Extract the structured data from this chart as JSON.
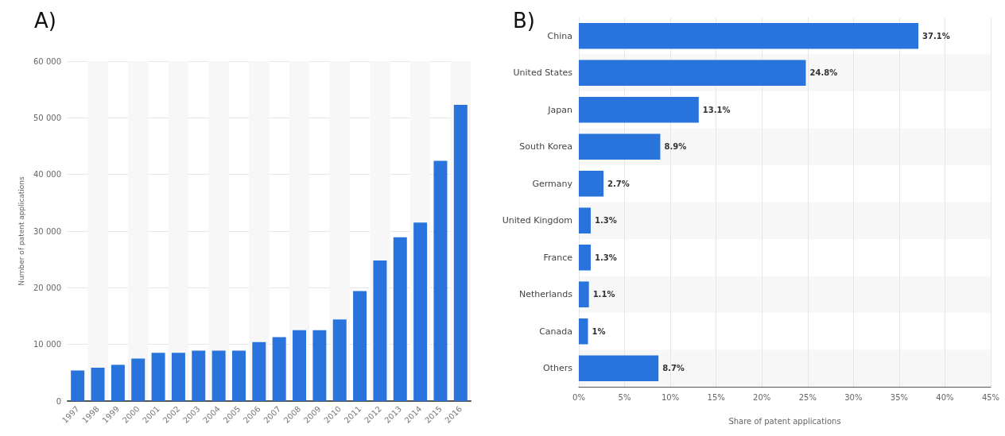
{
  "chart_data": [
    {
      "type": "bar",
      "title": "A)",
      "ylabel": "Number of patent applications",
      "categories": [
        "1997",
        "1998",
        "1999",
        "2000",
        "2001",
        "2002",
        "2003",
        "2004",
        "2005",
        "2006",
        "2007",
        "2008",
        "2009",
        "2010",
        "2011",
        "2012",
        "2013",
        "2014",
        "2015",
        "2016"
      ],
      "values": [
        5400,
        5900,
        6400,
        7500,
        8500,
        8500,
        8900,
        8900,
        8900,
        10400,
        11300,
        12500,
        12500,
        14400,
        19400,
        24800,
        28900,
        31500,
        42400,
        52300
      ],
      "color": "#2874dc",
      "ylim": [
        0,
        60000
      ],
      "yticks": [
        0,
        {
          "value": 10000,
          "label": "10 000"
        },
        {
          "value": 20000,
          "label": "20 000"
        },
        {
          "value": 30000,
          "label": "30 000"
        },
        {
          "value": 40000,
          "label": "40 000"
        },
        {
          "value": 50000,
          "label": "50 000"
        },
        {
          "value": 60000,
          "label": "60 000"
        }
      ],
      "grid": "y"
    },
    {
      "type": "bar",
      "title": "B)",
      "orientation": "horizontal",
      "xlabel": "Share of patent applications",
      "categories": [
        "China",
        "United States",
        "Japan",
        "South Korea",
        "Germany",
        "United Kingdom",
        "France",
        "Netherlands",
        "Canada",
        "Others"
      ],
      "values": [
        37.1,
        24.8,
        13.1,
        8.9,
        2.7,
        1.3,
        1.3,
        1.1,
        1,
        8.7
      ],
      "value_labels": [
        "37.1%",
        "24.8%",
        "13.1%",
        "8.9%",
        "2.7%",
        "1.3%",
        "1.3%",
        "1.1%",
        "1%",
        "8.7%"
      ],
      "color": "#2874dc",
      "xlim": [
        0,
        45
      ],
      "xticks": [
        {
          "value": 0,
          "label": "0%"
        },
        {
          "value": 5,
          "label": "5%"
        },
        {
          "value": 10,
          "label": "10%"
        },
        {
          "value": 15,
          "label": "15%"
        },
        {
          "value": 20,
          "label": "20%"
        },
        {
          "value": 25,
          "label": "25%"
        },
        {
          "value": 30,
          "label": "30%"
        },
        {
          "value": 35,
          "label": "35%"
        },
        {
          "value": 40,
          "label": "40%"
        },
        {
          "value": 45,
          "label": "45%"
        }
      ],
      "grid": "x"
    }
  ]
}
